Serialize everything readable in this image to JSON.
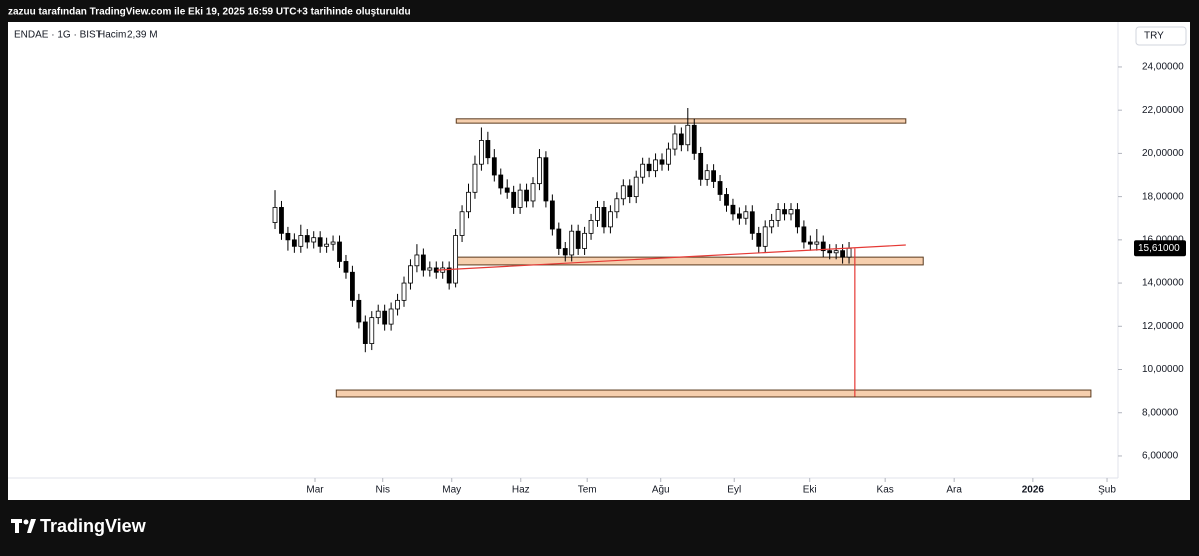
{
  "banner": "zazuu tarafından TradingView.com ile Eki 19, 2025 16:59 UTC+3 tarihinde oluşturuldu",
  "brand": "TradingView",
  "chart_data": {
    "type": "candlestick",
    "symbol": "ENDAE · 1G · BIST",
    "volume_label": "Hacim",
    "volume": "2,39 M",
    "currency": "TRY",
    "last_price": {
      "value": 15.61,
      "label": "15,61000"
    },
    "xlim": [
      -41.4,
      130.7
    ],
    "xticks": [
      {
        "value": 6.2,
        "label": "Mar"
      },
      {
        "value": 16.7,
        "label": "Nis"
      },
      {
        "value": 27.4,
        "label": "May"
      },
      {
        "value": 38.1,
        "label": "Haz"
      },
      {
        "value": 48.4,
        "label": "Tem"
      },
      {
        "value": 59.8,
        "label": "Ağu"
      },
      {
        "value": 71.2,
        "label": "Eyl"
      },
      {
        "value": 82.9,
        "label": "Eki"
      },
      {
        "value": 94.6,
        "label": "Kas"
      },
      {
        "value": 105.3,
        "label": "Ara"
      },
      {
        "value": 117.5,
        "label": "2026"
      },
      {
        "value": 129,
        "label": "Şub"
      }
    ],
    "ylim": [
      4.98,
      26.08
    ],
    "yticks": [
      {
        "value": 6,
        "label": "6,00000"
      },
      {
        "value": 8,
        "label": "8,00000"
      },
      {
        "value": 10,
        "label": "10,00000"
      },
      {
        "value": 12,
        "label": "12,00000"
      },
      {
        "value": 14,
        "label": "14,00000"
      },
      {
        "value": 16,
        "label": "16,00000"
      },
      {
        "value": 18,
        "label": "18,00000"
      },
      {
        "value": 20,
        "label": "20,00000"
      },
      {
        "value": 22,
        "label": "22,00000"
      },
      {
        "value": 24,
        "label": "24,00000"
      }
    ],
    "up_color": "#ffffff",
    "down_color": "#000000",
    "open": [
      16.8,
      17.5,
      16.3,
      16.0,
      15.7,
      16.2,
      15.9,
      16.1,
      15.7,
      15.8,
      15.9,
      15.0,
      14.5,
      13.2,
      12.2,
      11.2,
      12.4,
      12.7,
      12.1,
      12.8,
      13.2,
      14.0,
      14.8,
      15.3,
      14.6,
      14.7,
      14.5,
      14.7,
      14.0,
      16.2,
      17.3,
      18.2,
      19.5,
      20.6,
      19.8,
      19.0,
      18.4,
      18.2,
      17.5,
      18.3,
      17.8,
      18.6,
      19.8,
      17.8,
      16.5,
      15.6,
      15.3,
      16.4,
      15.6,
      16.3,
      16.9,
      17.5,
      16.6,
      17.3,
      17.9,
      18.5,
      18.0,
      18.9,
      19.5,
      19.2,
      19.7,
      19.5,
      20.2,
      20.9,
      20.4,
      21.3,
      20.0,
      18.8,
      19.2,
      18.7,
      18.1,
      17.6,
      17.2,
      17.0,
      17.3,
      16.3,
      15.7,
      16.6,
      16.9,
      17.4,
      17.2,
      17.4,
      16.6,
      15.9,
      15.8,
      15.9,
      15.5,
      15.4,
      15.5,
      15.2
    ],
    "high": [
      18.3,
      17.8,
      16.6,
      16.3,
      16.7,
      16.5,
      16.4,
      16.4,
      16.1,
      16.2,
      16.2,
      15.3,
      14.8,
      13.5,
      12.5,
      12.7,
      13.0,
      13.0,
      13.1,
      13.5,
      14.3,
      15.1,
      15.8,
      15.6,
      15.0,
      15.0,
      15.0,
      15.0,
      16.5,
      17.6,
      18.6,
      19.9,
      21.2,
      21.0,
      20.2,
      19.3,
      18.8,
      18.5,
      18.6,
      18.6,
      18.9,
      20.2,
      20.1,
      18.1,
      16.8,
      15.9,
      16.7,
      16.7,
      16.6,
      17.2,
      17.8,
      17.8,
      17.6,
      18.2,
      18.8,
      18.8,
      19.2,
      19.8,
      19.8,
      20.0,
      20.0,
      20.5,
      21.3,
      21.2,
      22.1,
      21.6,
      20.3,
      19.5,
      19.5,
      19.0,
      18.4,
      17.9,
      17.5,
      17.6,
      17.6,
      16.6,
      16.9,
      17.2,
      17.7,
      17.7,
      17.7,
      17.7,
      16.9,
      16.2,
      16.5,
      16.2,
      15.8,
      15.8,
      15.8,
      15.9
    ],
    "low": [
      16.5,
      16.0,
      15.5,
      15.4,
      15.4,
      15.6,
      15.6,
      15.4,
      15.4,
      15.5,
      14.7,
      14.2,
      12.9,
      11.9,
      10.8,
      10.9,
      12.1,
      11.8,
      11.8,
      12.5,
      12.9,
      13.7,
      14.5,
      14.3,
      14.3,
      14.2,
      14.2,
      13.7,
      13.8,
      15.9,
      17.0,
      17.9,
      19.2,
      19.5,
      18.7,
      18.1,
      17.9,
      17.2,
      17.2,
      17.5,
      17.5,
      18.3,
      17.5,
      16.2,
      15.3,
      15.0,
      15.0,
      15.3,
      15.3,
      16.0,
      16.6,
      16.3,
      16.3,
      17.0,
      17.6,
      17.7,
      17.7,
      18.6,
      18.9,
      18.9,
      19.2,
      19.2,
      19.9,
      20.1,
      20.1,
      19.7,
      18.5,
      18.5,
      18.4,
      17.8,
      17.3,
      16.9,
      16.7,
      16.7,
      16.0,
      15.4,
      15.4,
      16.3,
      16.6,
      16.9,
      16.9,
      16.3,
      15.6,
      15.5,
      15.5,
      15.2,
      15.1,
      15.1,
      14.9,
      14.9
    ],
    "close": [
      17.5,
      16.3,
      16.0,
      15.7,
      16.2,
      15.9,
      16.1,
      15.7,
      15.8,
      15.9,
      15.0,
      14.5,
      13.2,
      12.2,
      11.2,
      12.4,
      12.7,
      12.1,
      12.8,
      13.2,
      14.0,
      14.8,
      15.3,
      14.6,
      14.7,
      14.5,
      14.7,
      14.0,
      16.2,
      17.3,
      18.2,
      19.5,
      20.6,
      19.8,
      19.0,
      18.4,
      18.2,
      17.5,
      18.3,
      17.8,
      18.6,
      19.8,
      17.8,
      16.5,
      15.6,
      15.3,
      16.4,
      15.6,
      16.3,
      16.9,
      17.5,
      16.6,
      17.3,
      17.9,
      18.5,
      18.0,
      18.9,
      19.5,
      19.2,
      19.7,
      19.5,
      20.2,
      20.9,
      20.4,
      21.3,
      20.0,
      18.8,
      19.2,
      18.7,
      18.1,
      17.6,
      17.2,
      17.0,
      17.3,
      16.3,
      15.7,
      16.6,
      16.9,
      17.4,
      17.2,
      17.4,
      16.6,
      15.9,
      15.8,
      15.9,
      15.5,
      15.4,
      15.5,
      15.2,
      15.61
    ],
    "rectangles": [
      {
        "x": [
          28.1,
          97.8
        ],
        "y": [
          21.4,
          21.6
        ],
        "color": "#f6cfae"
      },
      {
        "x": [
          28.1,
          100.5
        ],
        "y": [
          14.84,
          15.2
        ],
        "color": "#f6cfae"
      },
      {
        "x": [
          9.5,
          126.5
        ],
        "y": [
          8.73,
          9.05
        ],
        "color": "#f6cfae"
      }
    ],
    "lines": [
      {
        "x": [
          25.1,
          97.8
        ],
        "y": [
          14.6,
          15.76
        ],
        "color": "#e53935"
      },
      {
        "x": [
          89.9,
          89.9
        ],
        "y": [
          15.6,
          8.75
        ],
        "color": "#e53935"
      }
    ]
  }
}
